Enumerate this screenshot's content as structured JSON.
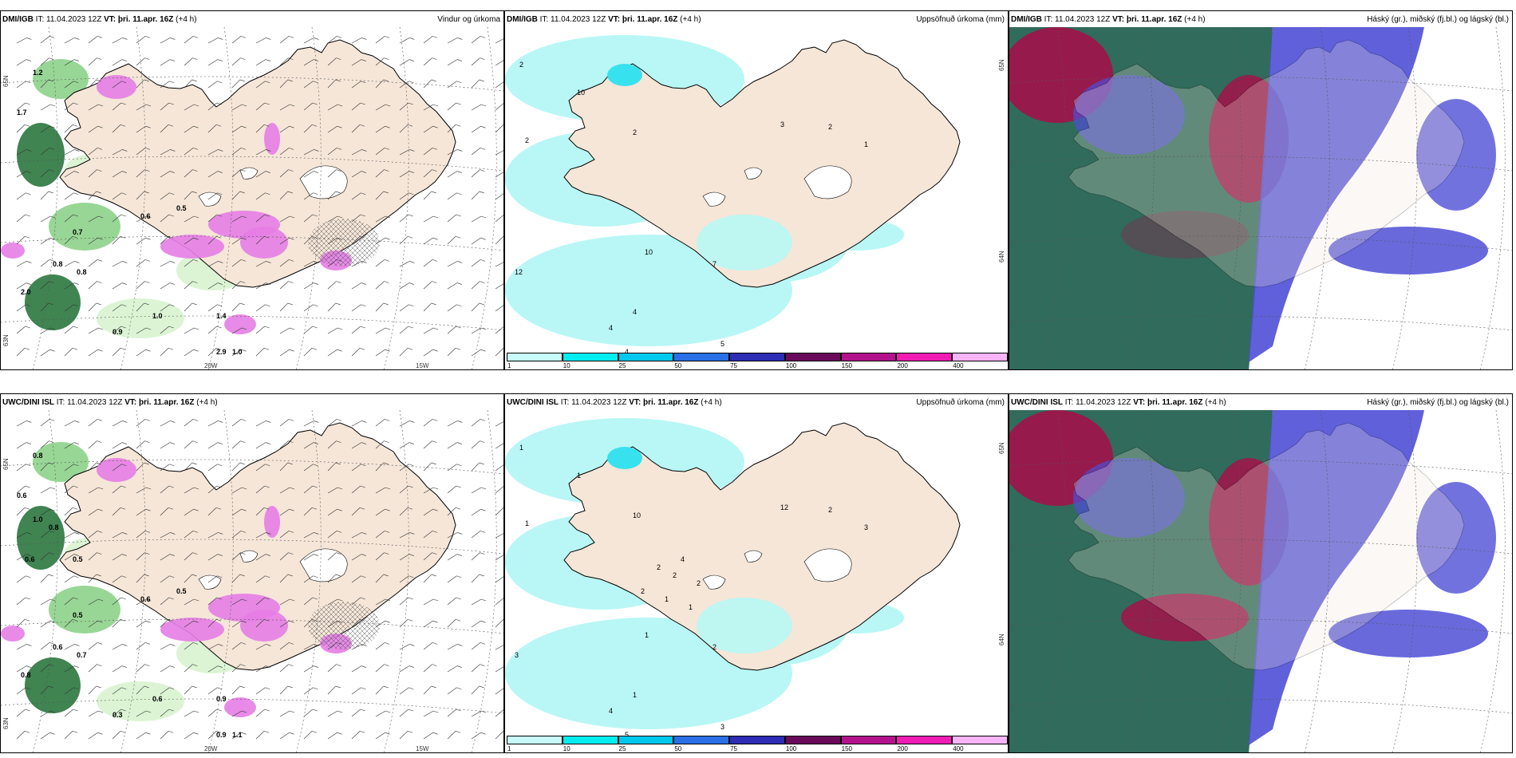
{
  "colors": {
    "land": "#f5e6d8",
    "precip_light": "#b8f7f5",
    "precip_mid": "#38e1ee",
    "wind_green_light": "#d6f2cc",
    "wind_green_mid": "#86cf82",
    "wind_green_dark": "#1f6e33",
    "convective_pink": "#e67de6",
    "cloud_high": "#1f5e4d",
    "cloud_mid": "#a3124a",
    "cloud_low": "#4f4fd6"
  },
  "panels": [
    {
      "id": "p1",
      "source": "DMI/IGB",
      "run": "IT: 11.04.2023 12Z",
      "valid": "VT: þri. 11.apr. 16Z",
      "lead": "(+4 h)",
      "title": "Vindur og úrkoma",
      "type": "wind",
      "lon_labels": [
        "20W",
        "15W"
      ],
      "lat_labels": [
        "65N",
        "63N"
      ],
      "values": [
        "1.2",
        "1.7",
        "0.7",
        "0.8",
        "0.8",
        "2.0",
        "1.0",
        "0.9",
        "2.9",
        "1.0",
        "0.6",
        "0.5",
        "1.4"
      ]
    },
    {
      "id": "p2",
      "source": "DMI/IGB",
      "run": "IT: 11.04.2023 12Z",
      "valid": "VT: þri. 11.apr. 16Z",
      "lead": "(+4 h)",
      "title": "Uppsöfnuð úrkoma (mm)",
      "type": "precip",
      "lat_labels": [
        "65N",
        "64N"
      ],
      "values": [
        "2",
        "10",
        "2",
        "2",
        "3",
        "2",
        "1",
        "10",
        "7",
        "4",
        "4",
        "4",
        "5",
        "12"
      ]
    },
    {
      "id": "p3",
      "source": "DMI/IGB",
      "run": "IT: 11.04.2023 12Z",
      "valid": "VT: þri. 11.apr. 16Z",
      "lead": "(+4 h)",
      "title": "Háský (gr.), miðský (fj.bl.) og lágský (bl.)",
      "type": "cloud"
    },
    {
      "id": "p4",
      "source": "UWC/DINI ISL",
      "run": "IT: 11.04.2023 12Z",
      "valid": "VT: þri. 11.apr. 16Z",
      "lead": "(+4 h)",
      "title": "",
      "type": "wind",
      "lon_labels": [
        "20W",
        "15W"
      ],
      "lat_labels": [
        "65N",
        "63N"
      ],
      "values": [
        "0.8",
        "0.6",
        "0.5",
        "0.6",
        "0.7",
        "0.8",
        "0.6",
        "0.3",
        "0.9",
        "1.1",
        "0.6",
        "0.5",
        "0.9",
        "1.0",
        "0.8",
        "0.6",
        "0.5"
      ]
    },
    {
      "id": "p5",
      "source": "UWC/DINI ISL",
      "run": "IT: 11.04.2023 12Z",
      "valid": "VT: þri. 11.apr. 16Z",
      "lead": "(+4 h)",
      "title": "Uppsöfnuð úrkoma (mm)",
      "type": "precip",
      "lat_labels": [
        "65N",
        "64N"
      ],
      "values": [
        "1",
        "1",
        "1",
        "10",
        "12",
        "2",
        "3",
        "1",
        "2",
        "1",
        "4",
        "5",
        "3",
        "3",
        "4",
        "2",
        "2",
        "2",
        "2",
        "1",
        "1"
      ]
    },
    {
      "id": "p6",
      "source": "UWC/DINI ISL",
      "run": "IT: 11.04.2023 12Z",
      "valid": "VT: þri. 11.apr. 16Z",
      "lead": "(+4 h)",
      "title": "Háský (gr.), miðský (fj.bl.) og lágský (bl.)",
      "type": "cloud"
    }
  ],
  "precip_legend": {
    "ticks": [
      "1",
      "10",
      "25",
      "50",
      "75",
      "100",
      "150",
      "200",
      "400"
    ],
    "colors": [
      "#c8fafa",
      "#00eef0",
      "#00c8ee",
      "#2a6fe6",
      "#2d2db5",
      "#6a0a5a",
      "#b4128c",
      "#f01cb4",
      "#f7b4f7"
    ]
  }
}
